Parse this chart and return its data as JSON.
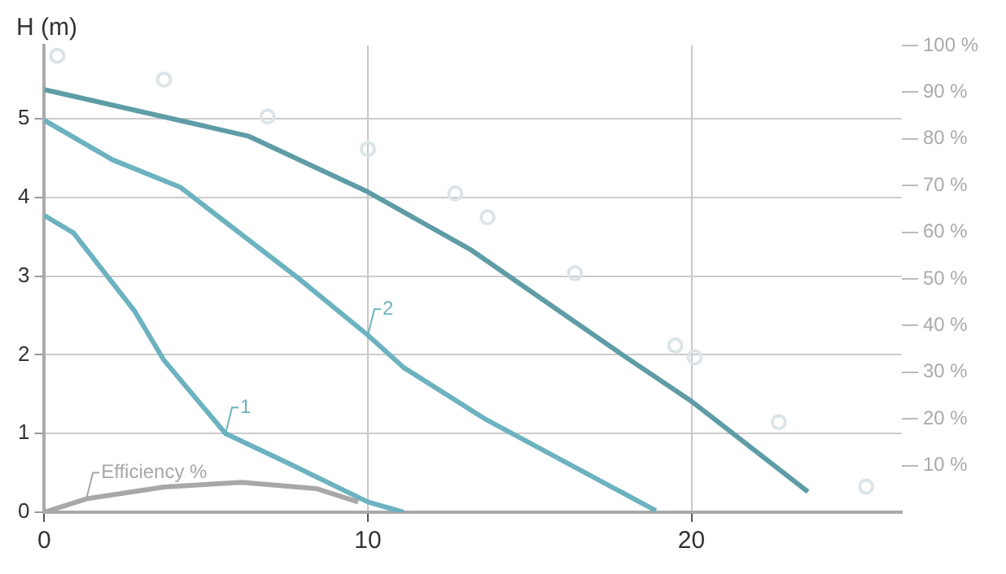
{
  "chart_data": {
    "type": "line",
    "ylabel": "H (m)",
    "xlim": [
      0,
      26.5
    ],
    "xticks": [
      0,
      10,
      20
    ],
    "ylim": [
      0,
      5.93
    ],
    "yticks": [
      0,
      1,
      2,
      3,
      4,
      5
    ],
    "y2lim": [
      0,
      100
    ],
    "y2ticks": [
      {
        "value": 10,
        "label": "10 %"
      },
      {
        "value": 20,
        "label": "20 %"
      },
      {
        "value": 30,
        "label": "30 %"
      },
      {
        "value": 40,
        "label": "40 %"
      },
      {
        "value": 50,
        "label": "50 %"
      },
      {
        "value": 60,
        "label": "60 %"
      },
      {
        "value": 70,
        "label": "70 %"
      },
      {
        "value": 80,
        "label": "80 %"
      },
      {
        "value": 90,
        "label": "90 %"
      },
      {
        "value": 100,
        "label": "100 %"
      }
    ],
    "grid": true,
    "legend": false,
    "line_style": "solid",
    "marker": "none",
    "series": [
      {
        "color": "#5e9ca6",
        "x": [
          0,
          6.3,
          10,
          13.2,
          17.9,
          20,
          23.6
        ],
        "values": [
          5.37,
          4.78,
          4.07,
          3.33,
          1.99,
          1.41,
          0.26
        ]
      },
      {
        "name": "2",
        "color": "#6cb2c0",
        "x": [
          0,
          2.1,
          4.2,
          7.8,
          10,
          11.1,
          13.6,
          18.9
        ],
        "values": [
          4.98,
          4.48,
          4.13,
          2.99,
          2.25,
          1.84,
          1.19,
          0.02
        ]
      },
      {
        "name": "1",
        "color": "#6cb2c0",
        "x": [
          0,
          0.9,
          2.8,
          3.7,
          5.6,
          7.5,
          10,
          11.1
        ],
        "values": [
          3.77,
          3.55,
          2.55,
          1.93,
          1.0,
          0.63,
          0.13,
          0
        ]
      },
      {
        "name": "Efficiency %",
        "color": "#a8a8a8",
        "x": [
          0,
          1.3,
          3.7,
          6.1,
          8.4,
          9.7
        ],
        "values": [
          0,
          0.17,
          0.32,
          0.38,
          0.3,
          0.13
        ]
      },
      {
        "type": "scatter",
        "axis": "y2",
        "marker": "circle",
        "color": "#dde4e7",
        "x": [
          0.4,
          3.7,
          6.9,
          10,
          12.7,
          13.7,
          16.4,
          19.5,
          20.1,
          22.7,
          25.4
        ],
        "values": [
          97.8,
          92.7,
          84.8,
          77.8,
          68.3,
          63.2,
          51.2,
          35.7,
          33.2,
          19.3,
          5.5
        ]
      }
    ]
  }
}
